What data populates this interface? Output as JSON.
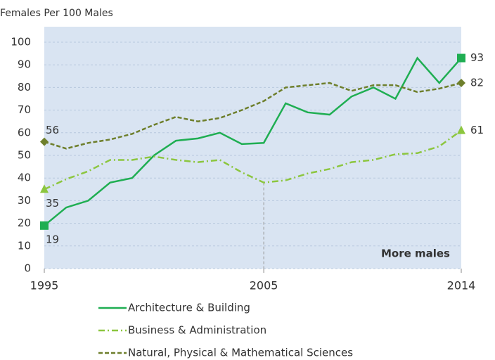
{
  "chart_data": {
    "type": "line",
    "y_axis_label": "Females Per 100 Males",
    "annotation": "More males",
    "x": [
      1995,
      1996,
      1997,
      1998,
      1999,
      2000,
      2001,
      2002,
      2003,
      2004,
      2005,
      2006,
      2007,
      2008,
      2009,
      2010,
      2011,
      2012,
      2013,
      2014
    ],
    "xlim": [
      1995,
      2014
    ],
    "xticks": [
      1995,
      2005,
      2014
    ],
    "ylim": [
      0,
      100
    ],
    "yticks": [
      0,
      10,
      20,
      30,
      40,
      50,
      60,
      70,
      80,
      90,
      100
    ],
    "grid": true,
    "vline": 2005,
    "legend": "bottom",
    "series": [
      {
        "name": "Architecture & Building",
        "color": "#1fae52",
        "dash": "solid",
        "marker": "square",
        "values": [
          19,
          27,
          30,
          38,
          40,
          50,
          56.5,
          57.5,
          60,
          55,
          55.5,
          73,
          69,
          68,
          76,
          80,
          75,
          93,
          82,
          93
        ]
      },
      {
        "name": "Business & Administration",
        "color": "#8cc63f",
        "dash": "dashdot",
        "marker": "triangle",
        "values": [
          35,
          39.5,
          43,
          48,
          48,
          49.5,
          48,
          47,
          48,
          42.5,
          38,
          39,
          42,
          44,
          47,
          48,
          50.5,
          51,
          54,
          61
        ]
      },
      {
        "name": "Natural, Physical & Mathematical Sciences",
        "color": "#6e7f2c",
        "dash": "dashed",
        "marker": "diamond",
        "values": [
          56,
          53,
          55.5,
          57,
          59.5,
          63.5,
          67,
          65,
          66.5,
          70,
          74,
          80,
          81,
          82,
          78.5,
          81,
          81,
          78,
          79.5,
          82
        ]
      }
    ]
  }
}
